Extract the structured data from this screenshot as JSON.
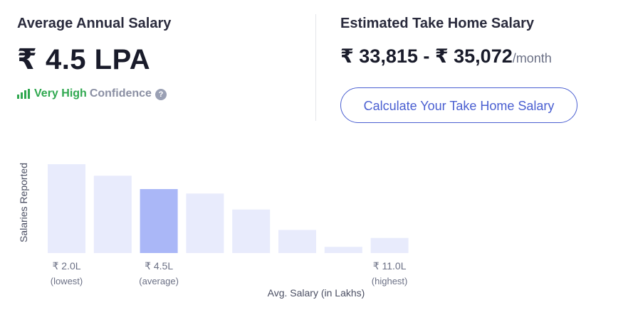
{
  "left": {
    "heading": "Average Annual Salary",
    "salary": "₹ 4.5 LPA",
    "confidence_level": "Very High",
    "confidence_word": "Confidence",
    "help_glyph": "?"
  },
  "right": {
    "heading": "Estimated Take Home Salary",
    "range": "₹ 33,815 - ₹ 35,072",
    "per": "/month",
    "button_label": "Calculate Your Take Home Salary"
  },
  "colors": {
    "bar": "#e8ebfc",
    "highlight_bar": "#aab7f7",
    "accent": "#4a5fd1",
    "confidence_green": "#2fa84f"
  },
  "chart_data": {
    "type": "bar",
    "ylabel": "Salaries Reported",
    "xlabel": "Avg. Salary (in Lakhs)",
    "values": [
      100,
      87,
      72,
      67,
      49,
      26,
      7,
      17
    ],
    "highlight_index": 2,
    "tick_labels": [
      {
        "index": 0,
        "value": "₹ 2.0L",
        "note": "(lowest)"
      },
      {
        "index": 2,
        "value": "₹ 4.5L",
        "note": "(average)"
      },
      {
        "index": 7,
        "value": "₹ 11.0L",
        "note": "(highest)"
      }
    ]
  }
}
